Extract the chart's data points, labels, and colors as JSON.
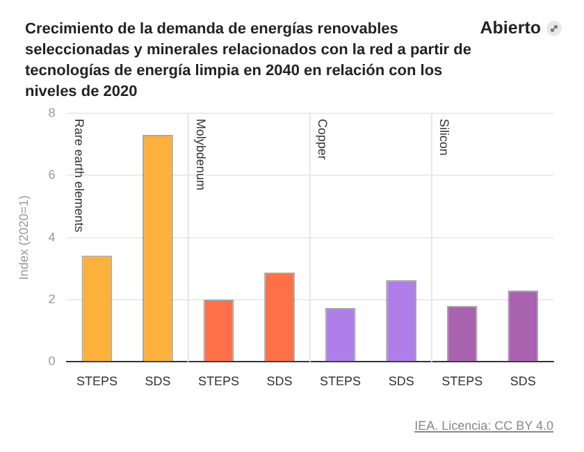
{
  "chart_data": {
    "type": "bar",
    "title": "Crecimiento de la demanda de energías renovables seleccionadas y minerales relacionados con la red a partir de tecnologías de energía limpia en 2040 en relación con los niveles de 2020",
    "ylabel": "Index (2020=1)",
    "categories": [
      "STEPS",
      "SDS",
      "STEPS",
      "SDS",
      "STEPS",
      "SDS",
      "STEPS",
      "SDS"
    ],
    "values": [
      3.42,
      7.3,
      2.0,
      2.87,
      1.73,
      2.63,
      1.8,
      2.3
    ],
    "colors": [
      "#fbb13c",
      "#fbb13c",
      "#fd7048",
      "#fd7048",
      "#b07ee8",
      "#b07ee8",
      "#a862b0",
      "#a862b0"
    ],
    "ylim": [
      0,
      8
    ],
    "yticks": [
      0,
      2,
      4,
      6,
      8
    ],
    "grid": "y",
    "legend": false,
    "annotations": [
      "Rare earth elements",
      "Molybdenum",
      "Copper",
      "Silicon",
      "Abierto",
      "IEA. Licencia: CC BY 4.0"
    ]
  }
}
